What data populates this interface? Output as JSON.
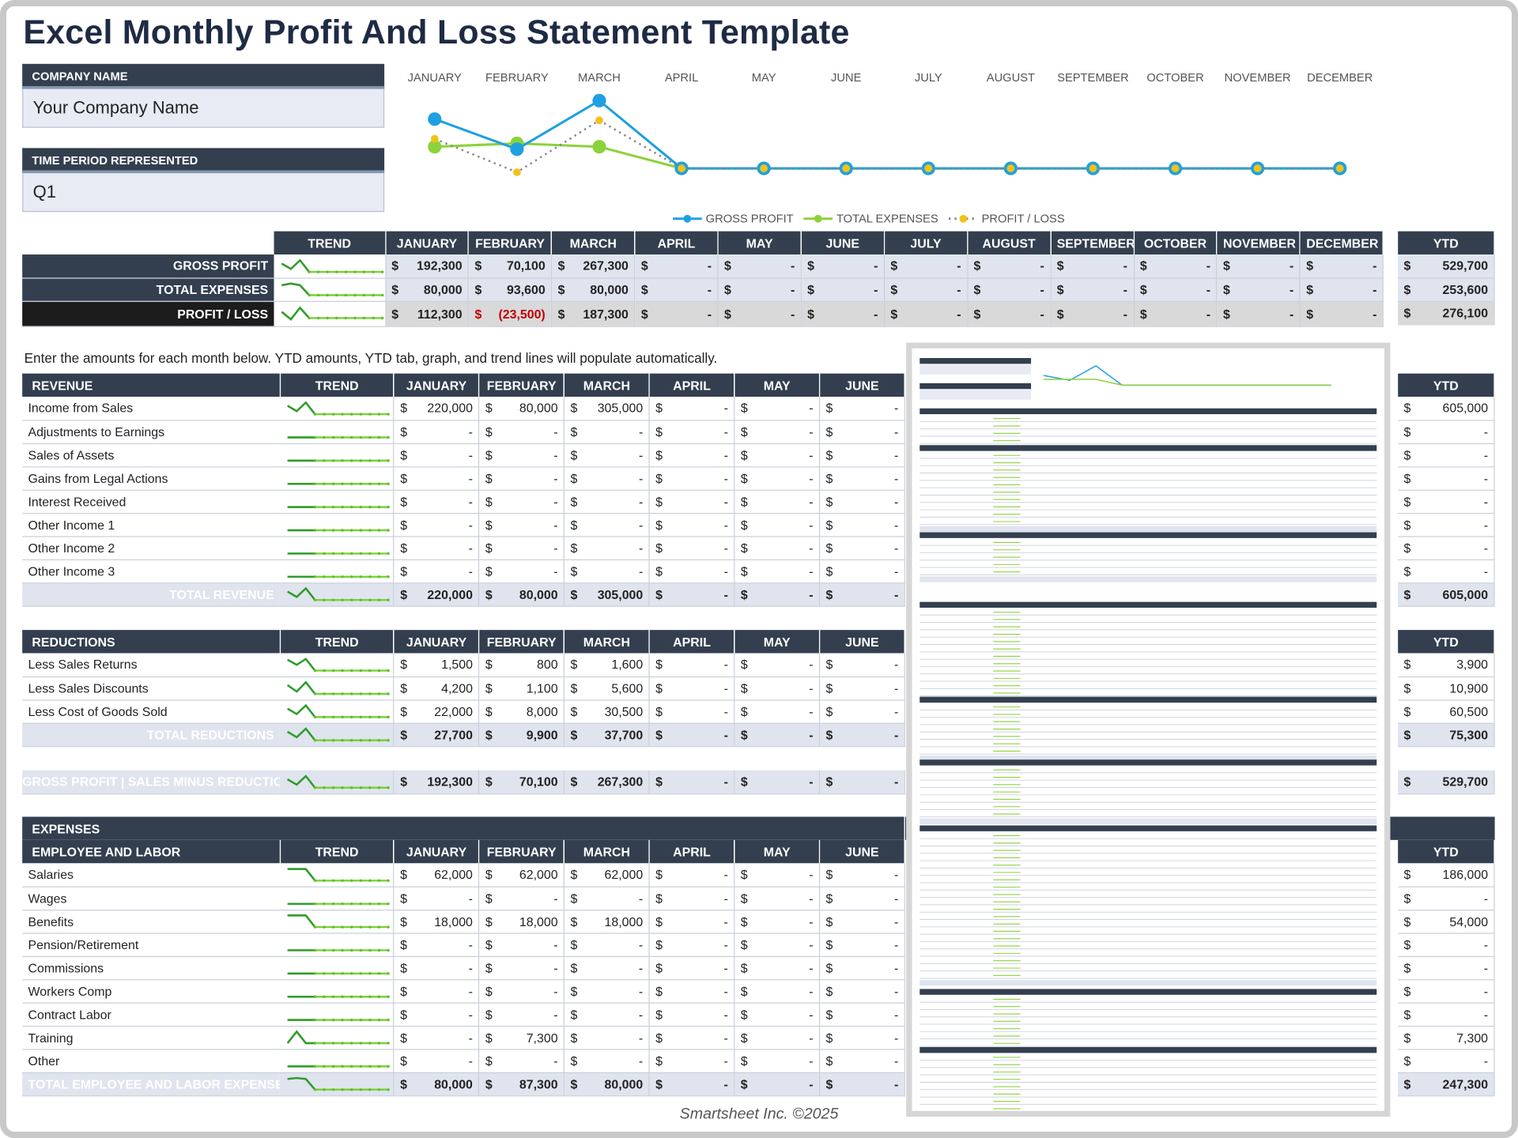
{
  "title": "Excel Monthly Profit And Loss Statement Template",
  "company": {
    "label": "COMPANY NAME",
    "value": "Your Company Name"
  },
  "period": {
    "label": "TIME PERIOD REPRESENTED",
    "value": "Q1"
  },
  "months": [
    "JANUARY",
    "FEBRUARY",
    "MARCH",
    "APRIL",
    "MAY",
    "JUNE",
    "JULY",
    "AUGUST",
    "SEPTEMBER",
    "OCTOBER",
    "NOVEMBER",
    "DECEMBER"
  ],
  "months_visible": [
    "JANUARY",
    "FEBRUARY",
    "MARCH",
    "APRIL",
    "MAY",
    "JUNE"
  ],
  "trend_label": "TREND",
  "ytd_label": "YTD",
  "currency": "$",
  "dash": "-",
  "colors": {
    "header": "#333f4f",
    "gross": "#1fa0e0",
    "expenses": "#8cd23a",
    "profit_line": "#888888",
    "profit_marker": "#f2c21b",
    "negative": "#c00000"
  },
  "chart_data": {
    "type": "line",
    "x": [
      "JANUARY",
      "FEBRUARY",
      "MARCH",
      "APRIL",
      "MAY",
      "JUNE",
      "JULY",
      "AUGUST",
      "SEPTEMBER",
      "OCTOBER",
      "NOVEMBER",
      "DECEMBER"
    ],
    "series": [
      {
        "name": "GROSS PROFIT",
        "values": [
          192300,
          70100,
          267300,
          0,
          0,
          0,
          0,
          0,
          0,
          0,
          0,
          0
        ]
      },
      {
        "name": "TOTAL EXPENSES",
        "values": [
          80000,
          93600,
          80000,
          0,
          0,
          0,
          0,
          0,
          0,
          0,
          0,
          0
        ]
      },
      {
        "name": "PROFIT / LOSS",
        "values": [
          112300,
          -23500,
          187300,
          0,
          0,
          0,
          0,
          0,
          0,
          0,
          0,
          0
        ]
      }
    ],
    "legend": "bottom",
    "grid": false
  },
  "summary": {
    "rows": [
      {
        "label": "GROSS PROFIT",
        "values": [
          "192,300",
          "70,100",
          "267,300",
          "-",
          "-",
          "-",
          "-",
          "-",
          "-",
          "-",
          "-",
          "-"
        ],
        "ytd": "529,700"
      },
      {
        "label": "TOTAL EXPENSES",
        "values": [
          "80,000",
          "93,600",
          "80,000",
          "-",
          "-",
          "-",
          "-",
          "-",
          "-",
          "-",
          "-",
          "-"
        ],
        "ytd": "253,600"
      },
      {
        "label": "PROFIT / LOSS",
        "values": [
          "112,300",
          "(23,500)",
          "187,300",
          "-",
          "-",
          "-",
          "-",
          "-",
          "-",
          "-",
          "-",
          "-"
        ],
        "ytd": "276,100"
      }
    ]
  },
  "instructions": "Enter the amounts for each month below. YTD amounts, YTD tab, graph, and trend lines will populate automatically.",
  "revenue": {
    "header": "REVENUE",
    "rows": [
      {
        "label": "Income from Sales",
        "values": [
          "220,000",
          "80,000",
          "305,000",
          "-",
          "-",
          "-"
        ],
        "ytd": "605,000"
      },
      {
        "label": "Adjustments to Earnings",
        "values": [
          "-",
          "-",
          "-",
          "-",
          "-",
          "-"
        ],
        "ytd": "-"
      },
      {
        "label": "Sales of Assets",
        "values": [
          "-",
          "-",
          "-",
          "-",
          "-",
          "-"
        ],
        "ytd": "-"
      },
      {
        "label": "Gains from Legal Actions",
        "values": [
          "-",
          "-",
          "-",
          "-",
          "-",
          "-"
        ],
        "ytd": "-"
      },
      {
        "label": "Interest Received",
        "values": [
          "-",
          "-",
          "-",
          "-",
          "-",
          "-"
        ],
        "ytd": "-"
      },
      {
        "label": "Other Income 1",
        "values": [
          "-",
          "-",
          "-",
          "-",
          "-",
          "-"
        ],
        "ytd": "-"
      },
      {
        "label": "Other Income 2",
        "values": [
          "-",
          "-",
          "-",
          "-",
          "-",
          "-"
        ],
        "ytd": "-"
      },
      {
        "label": "Other Income 3",
        "values": [
          "-",
          "-",
          "-",
          "-",
          "-",
          "-"
        ],
        "ytd": "-"
      }
    ],
    "total": {
      "label": "TOTAL REVENUE",
      "values": [
        "220,000",
        "80,000",
        "305,000",
        "-",
        "-",
        "-"
      ],
      "ytd": "605,000"
    }
  },
  "reductions": {
    "header": "REDUCTIONS",
    "rows": [
      {
        "label": "Less Sales Returns",
        "values": [
          "1,500",
          "800",
          "1,600",
          "-",
          "-",
          "-"
        ],
        "ytd": "3,900"
      },
      {
        "label": "Less Sales Discounts",
        "values": [
          "4,200",
          "1,100",
          "5,600",
          "-",
          "-",
          "-"
        ],
        "ytd": "10,900"
      },
      {
        "label": "Less Cost of Goods Sold",
        "values": [
          "22,000",
          "8,000",
          "30,500",
          "-",
          "-",
          "-"
        ],
        "ytd": "60,500"
      }
    ],
    "total": {
      "label": "TOTAL REDUCTIONS",
      "values": [
        "27,700",
        "9,900",
        "37,700",
        "-",
        "-",
        "-"
      ],
      "ytd": "75,300"
    }
  },
  "gross_profit_row": {
    "label": "GROSS PROFIT  |  SALES MINUS REDUCTIONS",
    "values": [
      "192,300",
      "70,100",
      "267,300",
      "-",
      "-",
      "-"
    ],
    "ytd": "529,700"
  },
  "expenses": {
    "header": "EXPENSES",
    "sub_header": "EMPLOYEE AND LABOR",
    "rows": [
      {
        "label": "Salaries",
        "values": [
          "62,000",
          "62,000",
          "62,000",
          "-",
          "-",
          "-"
        ],
        "ytd": "186,000"
      },
      {
        "label": "Wages",
        "values": [
          "-",
          "-",
          "-",
          "-",
          "-",
          "-"
        ],
        "ytd": "-"
      },
      {
        "label": "Benefits",
        "values": [
          "18,000",
          "18,000",
          "18,000",
          "-",
          "-",
          "-"
        ],
        "ytd": "54,000"
      },
      {
        "label": "Pension/Retirement",
        "values": [
          "-",
          "-",
          "-",
          "-",
          "-",
          "-"
        ],
        "ytd": "-"
      },
      {
        "label": "Commissions",
        "values": [
          "-",
          "-",
          "-",
          "-",
          "-",
          "-"
        ],
        "ytd": "-"
      },
      {
        "label": "Workers Comp",
        "values": [
          "-",
          "-",
          "-",
          "-",
          "-",
          "-"
        ],
        "ytd": "-"
      },
      {
        "label": "Contract Labor",
        "values": [
          "-",
          "-",
          "-",
          "-",
          "-",
          "-"
        ],
        "ytd": "-"
      },
      {
        "label": "Training",
        "values": [
          "-",
          "7,300",
          "-",
          "-",
          "-",
          "-"
        ],
        "ytd": "7,300"
      },
      {
        "label": "Other",
        "values": [
          "-",
          "-",
          "-",
          "-",
          "-",
          "-"
        ],
        "ytd": "-"
      }
    ],
    "total": {
      "label": "TOTAL EMPLOYEE AND LABOR EXPENSE",
      "values": [
        "80,000",
        "87,300",
        "80,000",
        "-",
        "-",
        "-"
      ],
      "ytd": "247,300"
    }
  },
  "footer": "Smartsheet Inc. ©2025"
}
